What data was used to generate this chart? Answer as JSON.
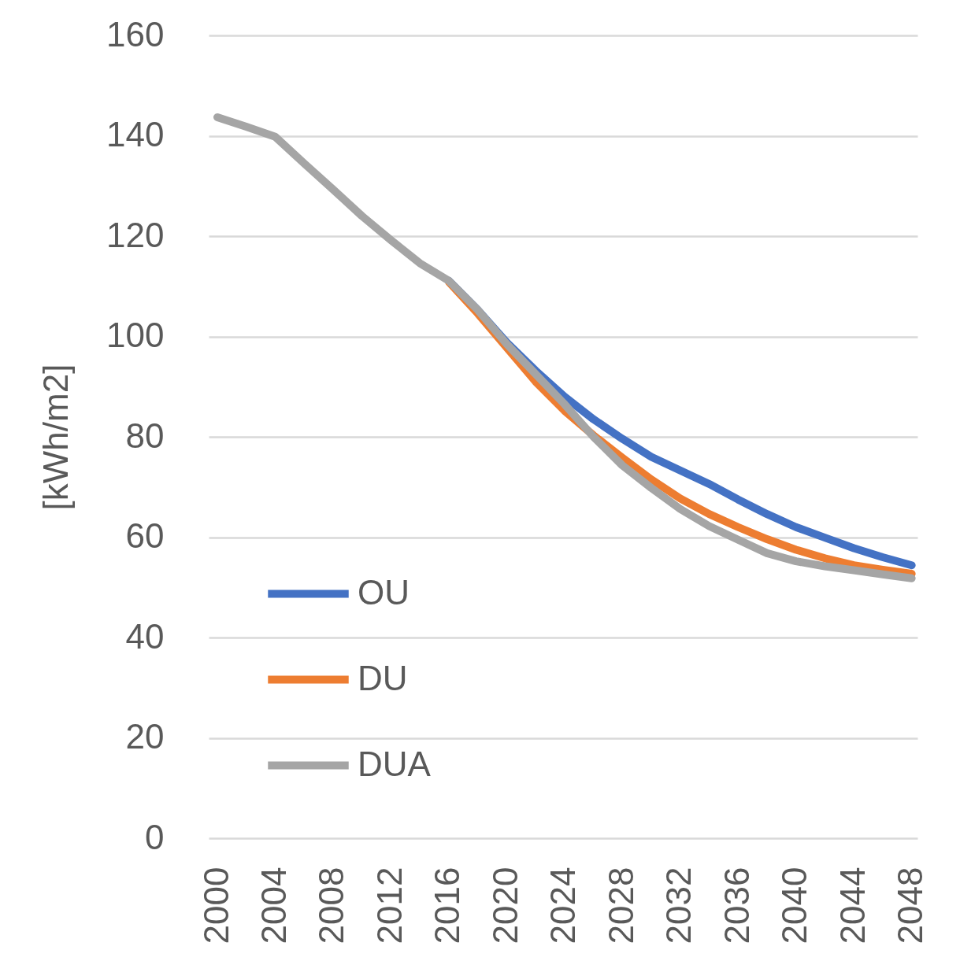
{
  "chart_data": {
    "type": "line",
    "ylabel": "[kWh/m2]",
    "x": [
      2000,
      2002,
      2004,
      2006,
      2008,
      2010,
      2012,
      2014,
      2016,
      2018,
      2020,
      2022,
      2024,
      2026,
      2028,
      2030,
      2032,
      2034,
      2036,
      2038,
      2040,
      2042,
      2044,
      2046,
      2048
    ],
    "xlim": [
      1999.4,
      2048.4
    ],
    "xticks": [
      2000,
      2004,
      2008,
      2012,
      2016,
      2020,
      2024,
      2028,
      2032,
      2036,
      2040,
      2044,
      2048
    ],
    "ylim": [
      0,
      160
    ],
    "yticks": [
      0,
      20,
      40,
      60,
      80,
      100,
      120,
      140,
      160
    ],
    "grid": "y",
    "legend": "bottom left",
    "line_style": "solid",
    "series": [
      {
        "name": "OU",
        "color": "#4472c4",
        "values": [
          null,
          null,
          null,
          null,
          null,
          null,
          null,
          null,
          111.1,
          105.3,
          98.8,
          93.2,
          88.0,
          83.5,
          79.6,
          76.0,
          73.3,
          70.6,
          67.5,
          64.6,
          62.0,
          59.9,
          57.8,
          56.0,
          54.4
        ]
      },
      {
        "name": "DU",
        "color": "#ed7d31",
        "values": [
          null,
          null,
          null,
          null,
          null,
          null,
          null,
          null,
          110.9,
          104.6,
          97.8,
          91.0,
          85.2,
          80.3,
          75.8,
          71.5,
          67.7,
          64.6,
          62.0,
          59.6,
          57.5,
          55.8,
          54.4,
          53.5,
          52.7
        ]
      },
      {
        "name": "DUA",
        "color": "#a5a5a5",
        "values": [
          143.7,
          141.8,
          139.8,
          134.5,
          129.3,
          124.0,
          119.2,
          114.6,
          111.1,
          105.3,
          98.5,
          92.5,
          86.5,
          80.0,
          74.3,
          69.8,
          65.6,
          62.2,
          59.5,
          56.8,
          55.2,
          54.2,
          53.4,
          52.6,
          51.8
        ]
      }
    ]
  }
}
